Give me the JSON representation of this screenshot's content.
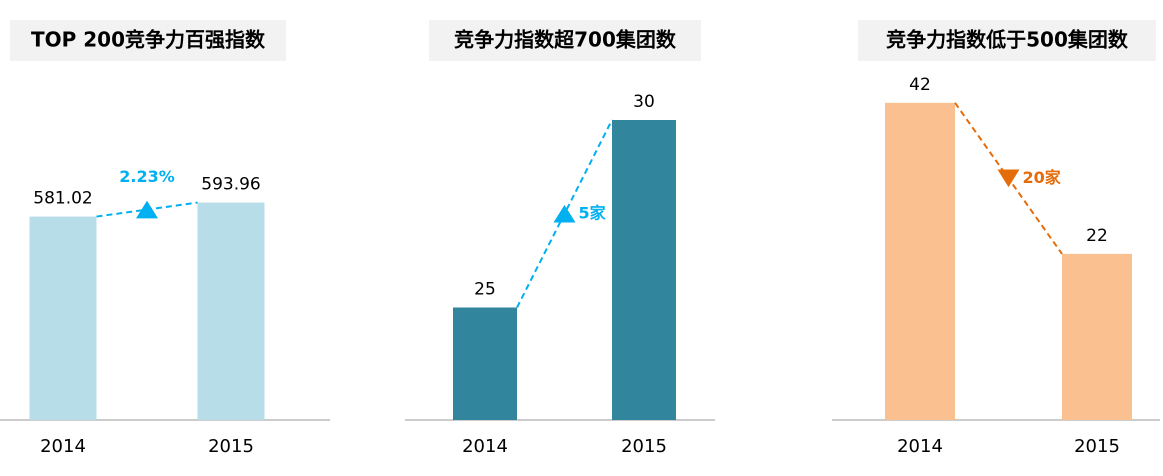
{
  "chart_data": [
    {
      "type": "bar",
      "title": "TOP 200竞争力百强指数",
      "categories": [
        "2014",
        "2015"
      ],
      "values": [
        581.02,
        593.96
      ],
      "color": "#b7dde8",
      "ylim": [
        393,
        698
      ],
      "annotation": "2.23%",
      "annotation_color": "#00b0f0"
    },
    {
      "type": "bar",
      "title": "竞争力指数超700集团数",
      "categories": [
        "2014",
        "2015"
      ],
      "values": [
        25,
        30
      ],
      "color": "#31859c",
      "ylim": [
        22,
        30.8
      ],
      "annotation": "5家",
      "annotation_color": "#00b0f0"
    },
    {
      "type": "bar",
      "title": "竞争力指数低于500集团数",
      "categories": [
        "2014",
        "2015"
      ],
      "values": [
        42,
        22
      ],
      "color": "#fac090",
      "ylim": [
        0,
        43.7
      ],
      "annotation": "20家",
      "annotation_color": "#e46c0a"
    }
  ]
}
